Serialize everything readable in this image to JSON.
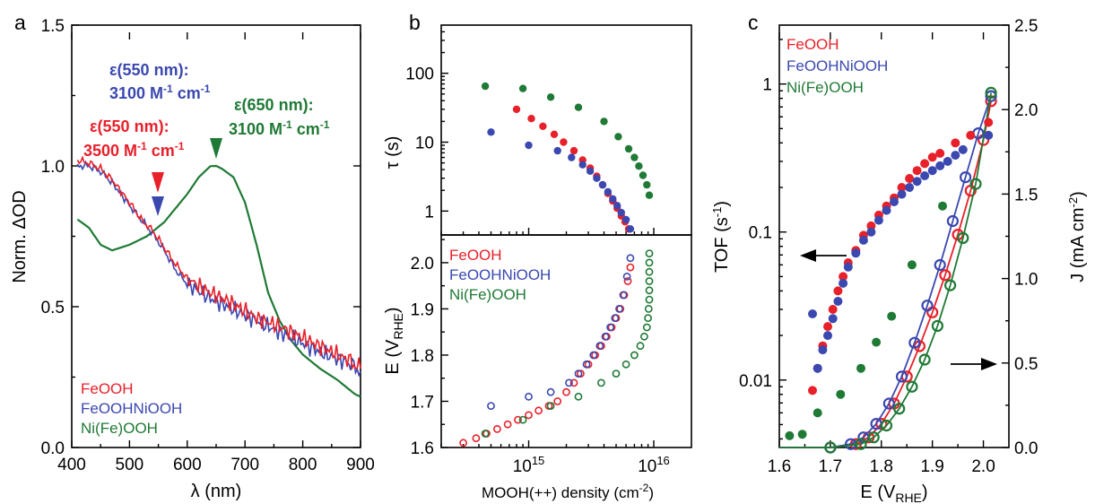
{
  "colors": {
    "red": "#e8202a",
    "blue": "#3a48b0",
    "green": "#1f7a35"
  },
  "panels": {
    "a": {
      "letter": "a",
      "xlabel_greek": "λ",
      "xlabel_rest": "(nm)",
      "ylabel": "Norm. ΔOD",
      "xticks": [
        "400",
        "500",
        "600",
        "700",
        "800",
        "900"
      ],
      "yticks": [
        "0.0",
        "0.5",
        "1.0",
        "1.5"
      ],
      "legend": [
        "FeOOH",
        "FeOOHNiOOH",
        "Ni(Fe)OOH"
      ],
      "annotations": {
        "blue_title": "ε(550 nm):",
        "blue_value": "3100 M",
        "red_title": "ε(550 nm):",
        "red_value": "3500 M",
        "green_title": "ε(650 nm):",
        "green_value": "3100 M",
        "unit_mid": " cm",
        "sup": "-1"
      }
    },
    "b": {
      "letter": "b",
      "xlabel": "MOOH(++) density (cm",
      "xlabel_sup": "-2",
      "xlabel_end": ")",
      "top_ylabel": "τ (s)",
      "top_yticks": [
        "1",
        "10",
        "100"
      ],
      "bottom_ylabel_main": "E (V",
      "bottom_ylabel_sub": "RHE",
      "bottom_ylabel_end": ")",
      "bottom_yticks": [
        "1.6",
        "1.7",
        "1.8",
        "1.9",
        "2.0"
      ],
      "xtick_base": "10",
      "xticks_exp": [
        "15",
        "16"
      ],
      "legend": [
        "FeOOH",
        "FeOOHNiOOH",
        "Ni(Fe)OOH"
      ]
    },
    "c": {
      "letter": "c",
      "xlabel_main": "E (V",
      "xlabel_sub": "RHE",
      "xlabel_end": ")",
      "left_ylabel": "TOF (s",
      "left_ylabel_sup": "-1",
      "left_ylabel_end": ")",
      "right_ylabel": "J (mA cm",
      "right_ylabel_sup": "-2",
      "right_ylabel_end": ")",
      "xticks": [
        "1.6",
        "1.7",
        "1.8",
        "1.9",
        "2.0"
      ],
      "left_yticks": [
        "0.01",
        "0.1",
        "1"
      ],
      "right_yticks": [
        "0.0",
        "0.5",
        "1.0",
        "1.5",
        "2.0",
        "2.5"
      ],
      "legend": [
        "FeOOH",
        "FeOOHNiOOH",
        "Ni(Fe)OOH"
      ]
    }
  },
  "chart_data": [
    {
      "id": "a",
      "type": "line",
      "xlabel": "λ (nm)",
      "ylabel": "Norm. ΔOD",
      "xlim": [
        400,
        900
      ],
      "ylim": [
        0,
        1.5
      ],
      "series": [
        {
          "name": "FeOOH",
          "color": "#e8202a",
          "x": [
            410,
            430,
            450,
            470,
            500,
            520,
            540,
            560,
            580,
            600,
            640,
            680,
            720,
            760,
            800,
            840,
            880,
            900
          ],
          "y": [
            1.02,
            1.01,
            0.99,
            0.95,
            0.87,
            0.81,
            0.77,
            0.71,
            0.65,
            0.6,
            0.55,
            0.51,
            0.46,
            0.43,
            0.39,
            0.35,
            0.31,
            0.28
          ]
        },
        {
          "name": "FeOOHNiOOH",
          "color": "#3a48b0",
          "x": [
            410,
            430,
            450,
            470,
            500,
            520,
            540,
            560,
            580,
            600,
            640,
            680,
            720,
            760,
            800,
            840,
            880,
            900
          ],
          "y": [
            1.0,
            1.0,
            0.98,
            0.94,
            0.86,
            0.81,
            0.76,
            0.7,
            0.63,
            0.58,
            0.53,
            0.49,
            0.45,
            0.41,
            0.37,
            0.33,
            0.3,
            0.27
          ]
        },
        {
          "name": "Ni(Fe)OOH",
          "color": "#1f7a35",
          "x": [
            410,
            430,
            450,
            470,
            500,
            530,
            560,
            580,
            600,
            620,
            640,
            650,
            660,
            680,
            700,
            720,
            740,
            760,
            780,
            800,
            830,
            860,
            890,
            900
          ],
          "y": [
            0.81,
            0.78,
            0.72,
            0.7,
            0.72,
            0.75,
            0.8,
            0.85,
            0.9,
            0.96,
            0.999,
            1.0,
            0.99,
            0.96,
            0.87,
            0.72,
            0.55,
            0.45,
            0.38,
            0.33,
            0.28,
            0.24,
            0.19,
            0.18
          ]
        }
      ],
      "annotations": [
        {
          "text": "ε(550 nm): 3100 M-1 cm-1",
          "color": "#3a48b0"
        },
        {
          "text": "ε(550 nm): 3500 M-1 cm-1",
          "color": "#e8202a"
        },
        {
          "text": "ε(650 nm): 3100 M-1 cm-1",
          "color": "#1f7a35"
        }
      ]
    },
    {
      "id": "b_top",
      "type": "scatter",
      "ylabel": "τ (s)",
      "xscale": "log",
      "yscale": "log",
      "xlim": [
        200000000000000.0,
        2e+16
      ],
      "ylim": [
        0.45,
        500
      ],
      "series": [
        {
          "name": "FeOOH",
          "color": "#e8202a",
          "x": [
            800000000000000.0,
            1050000000000000.0,
            1300000000000000.0,
            1600000000000000.0,
            1900000000000000.0,
            2300000000000000.0,
            2700000000000000.0,
            3100000000000000.0,
            3500000000000000.0,
            3900000000000000.0,
            4300000000000000.0,
            4700000000000000.0,
            5100000000000000.0,
            5500000000000000.0,
            5900000000000000.0,
            6300000000000000.0
          ],
          "y": [
            30,
            22,
            17,
            13,
            10,
            7.5,
            5.5,
            4.2,
            3.2,
            2.4,
            1.8,
            1.4,
            1.1,
            0.85,
            0.7,
            0.55
          ]
        },
        {
          "name": "FeOOHNiOOH",
          "color": "#3a48b0",
          "x": [
            500000000000000.0,
            1000000000000000.0,
            1700000000000000.0,
            2200000000000000.0,
            2700000000000000.0,
            3100000000000000.0,
            3500000000000000.0,
            3900000000000000.0,
            4300000000000000.0,
            4700000000000000.0,
            5100000000000000.0,
            5500000000000000.0,
            6000000000000000.0,
            6500000000000000.0
          ],
          "y": [
            14,
            9,
            7.5,
            6,
            4.7,
            3.8,
            3,
            2.4,
            1.9,
            1.5,
            1.2,
            0.95,
            0.75,
            0.55
          ]
        },
        {
          "name": "Ni(Fe)OOH",
          "color": "#1f7a35",
          "x": [
            450000000000000.0,
            900000000000000.0,
            1500000000000000.0,
            2500000000000000.0,
            4000000000000000.0,
            5200000000000000.0,
            6300000000000000.0,
            7000000000000000.0,
            7600000000000000.0,
            8200000000000000.0,
            8800000000000000.0,
            9200000000000000.0
          ],
          "y": [
            65,
            60,
            45,
            32,
            20,
            12,
            8,
            6,
            4.5,
            3.3,
            2.4,
            1.7
          ]
        }
      ]
    },
    {
      "id": "b_bottom",
      "type": "scatter",
      "xlabel": "MOOH(++) density (cm-2)",
      "ylabel": "E (VRHE)",
      "xscale": "log",
      "xlim": [
        200000000000000.0,
        2e+16
      ],
      "ylim": [
        1.6,
        2.06
      ],
      "series": [
        {
          "name": "FeOOH",
          "color": "#e8202a",
          "x": [
            300000000000000.0,
            380000000000000.0,
            460000000000000.0,
            560000000000000.0,
            680000000000000.0,
            820000000000000.0,
            1000000000000000.0,
            1200000000000000.0,
            1450000000000000.0,
            1700000000000000.0,
            2000000000000000.0,
            2300000000000000.0,
            2600000000000000.0,
            3000000000000000.0,
            3400000000000000.0,
            3800000000000000.0,
            4200000000000000.0,
            4600000000000000.0,
            5000000000000000.0,
            5400000000000000.0,
            5800000000000000.0,
            6200000000000000.0,
            6500000000000000.0
          ],
          "y": [
            1.61,
            1.62,
            1.63,
            1.64,
            1.65,
            1.66,
            1.67,
            1.68,
            1.69,
            1.7,
            1.72,
            1.74,
            1.76,
            1.78,
            1.8,
            1.82,
            1.84,
            1.86,
            1.88,
            1.9,
            1.93,
            1.96,
            1.99
          ]
        },
        {
          "name": "FeOOHNiOOH",
          "color": "#3a48b0",
          "x": [
            500000000000000.0,
            1000000000000000.0,
            1500000000000000.0,
            2100000000000000.0,
            2500000000000000.0,
            2900000000000000.0,
            3300000000000000.0,
            3700000000000000.0,
            4100000000000000.0,
            4500000000000000.0,
            4900000000000000.0,
            5300000000000000.0,
            5700000000000000.0,
            6100000000000000.0,
            6500000000000000.0
          ],
          "y": [
            1.69,
            1.71,
            1.72,
            1.74,
            1.76,
            1.78,
            1.8,
            1.82,
            1.84,
            1.86,
            1.88,
            1.9,
            1.93,
            1.97,
            2.01
          ]
        },
        {
          "name": "Ni(Fe)OOH",
          "color": "#1f7a35",
          "x": [
            450000000000000.0,
            900000000000000.0,
            1500000000000000.0,
            2500000000000000.0,
            3800000000000000.0,
            5000000000000000.0,
            6000000000000000.0,
            7000000000000000.0,
            7800000000000000.0,
            8400000000000000.0,
            8800000000000000.0,
            9000000000000000.0,
            9100000000000000.0,
            9200000000000000.0,
            9200000000000000.0,
            9200000000000000.0,
            9200000000000000.0,
            9200000000000000.0,
            9200000000000000.0
          ],
          "y": [
            1.63,
            1.66,
            1.69,
            1.71,
            1.74,
            1.76,
            1.78,
            1.8,
            1.82,
            1.84,
            1.86,
            1.88,
            1.9,
            1.92,
            1.94,
            1.96,
            1.98,
            2.0,
            2.02
          ]
        }
      ]
    },
    {
      "id": "c_tof",
      "type": "scatter",
      "xlabel": "E (VRHE)",
      "ylabel": "TOF (s-1)",
      "yscale": "log",
      "xlim": [
        1.6,
        2.05
      ],
      "ylim": [
        0.0035,
        2.5
      ],
      "series": [
        {
          "name": "FeOOH",
          "color": "#e8202a",
          "x": [
            1.665,
            1.675,
            1.685,
            1.695,
            1.705,
            1.715,
            1.725,
            1.735,
            1.75,
            1.765,
            1.78,
            1.795,
            1.81,
            1.825,
            1.84,
            1.855,
            1.87,
            1.885,
            1.9,
            1.915,
            1.945,
            1.975,
            2.01
          ],
          "y": [
            0.0085,
            0.012,
            0.017,
            0.023,
            0.03,
            0.04,
            0.05,
            0.062,
            0.075,
            0.095,
            0.11,
            0.13,
            0.15,
            0.17,
            0.2,
            0.23,
            0.26,
            0.29,
            0.32,
            0.34,
            0.4,
            0.45,
            0.55
          ]
        },
        {
          "name": "FeOOHNiOOH",
          "color": "#3a48b0",
          "x": [
            1.665,
            1.675,
            1.685,
            1.695,
            1.705,
            1.715,
            1.725,
            1.735,
            1.75,
            1.765,
            1.78,
            1.795,
            1.81,
            1.825,
            1.84,
            1.855,
            1.87,
            1.885,
            1.9,
            1.915,
            1.93,
            1.945,
            1.96,
            2.01
          ],
          "y": [
            0.028,
            0.012,
            0.016,
            0.02,
            0.026,
            0.034,
            0.045,
            0.058,
            0.072,
            0.088,
            0.1,
            0.12,
            0.14,
            0.16,
            0.18,
            0.2,
            0.22,
            0.24,
            0.26,
            0.28,
            0.3,
            0.33,
            0.36,
            0.45
          ]
        },
        {
          "name": "Ni(Fe)OOH",
          "color": "#1f7a35",
          "x": [
            1.62,
            1.645,
            1.675,
            1.72,
            1.76,
            1.79,
            1.82,
            1.86,
            1.92
          ],
          "y": [
            0.0042,
            0.0043,
            0.006,
            0.008,
            0.012,
            0.018,
            0.027,
            0.06,
            0.15
          ]
        }
      ]
    },
    {
      "id": "c_J",
      "type": "line",
      "xlabel": "E (VRHE)",
      "ylabel": "J (mA cm-2)",
      "xlim": [
        1.6,
        2.05
      ],
      "ylim": [
        0,
        2.5
      ],
      "series": [
        {
          "name": "FeOOH",
          "color": "#e8202a",
          "x": [
            1.6,
            1.65,
            1.7,
            1.75,
            1.775,
            1.8,
            1.825,
            1.85,
            1.875,
            1.9,
            1.925,
            1.95,
            1.975,
            2.0,
            2.015
          ],
          "y": [
            0,
            0,
            0,
            0.02,
            0.06,
            0.14,
            0.26,
            0.42,
            0.6,
            0.8,
            1.02,
            1.26,
            1.52,
            1.82,
            2.05
          ]
        },
        {
          "name": "FeOOHNiOOH",
          "color": "#3a48b0",
          "x": [
            1.6,
            1.65,
            1.7,
            1.74,
            1.765,
            1.79,
            1.815,
            1.84,
            1.865,
            1.89,
            1.915,
            1.94,
            1.965,
            1.99,
            2.015
          ],
          "y": [
            0,
            0,
            0,
            0.02,
            0.06,
            0.14,
            0.26,
            0.42,
            0.62,
            0.84,
            1.08,
            1.34,
            1.6,
            1.86,
            2.08
          ]
        },
        {
          "name": "Ni(Fe)OOH",
          "color": "#1f7a35",
          "x": [
            1.6,
            1.65,
            1.7,
            1.76,
            1.785,
            1.81,
            1.835,
            1.86,
            1.885,
            1.91,
            1.935,
            1.96,
            1.985,
            2.015
          ],
          "y": [
            0,
            0,
            0,
            0.02,
            0.06,
            0.13,
            0.23,
            0.36,
            0.52,
            0.72,
            0.96,
            1.24,
            1.56,
            2.1
          ]
        }
      ]
    }
  ]
}
